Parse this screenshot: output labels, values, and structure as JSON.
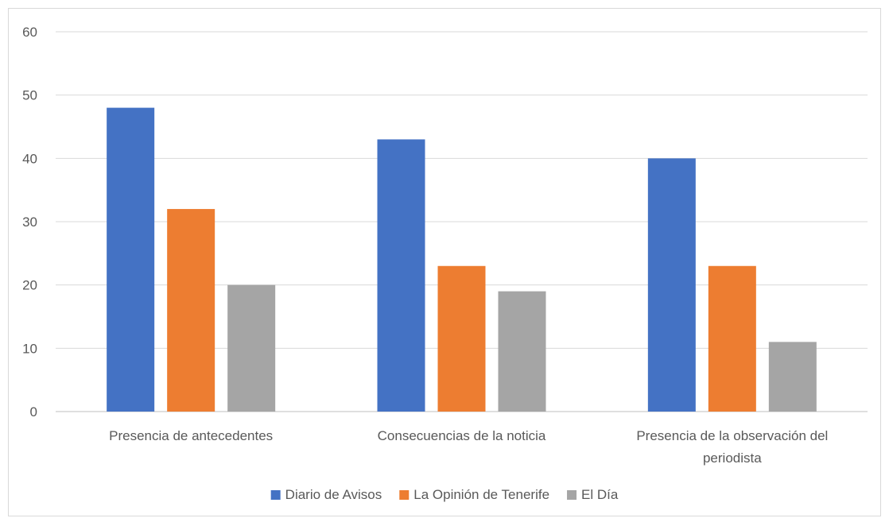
{
  "chart_data": {
    "type": "bar",
    "title": "",
    "xlabel": "",
    "ylabel": "",
    "categories": [
      [
        "Presencia de antecedentes"
      ],
      [
        "Consecuencias de la noticia"
      ],
      [
        "Presencia de la observación del",
        "periodista"
      ]
    ],
    "series": [
      {
        "name": "Diario de Avisos",
        "color": "#4472C4",
        "values": [
          48,
          43,
          40
        ]
      },
      {
        "name": "La Opinión de Tenerife",
        "color": "#ED7D31",
        "values": [
          32,
          23,
          23
        ]
      },
      {
        "name": "El Día",
        "color": "#A5A5A5",
        "values": [
          20,
          19,
          11
        ]
      }
    ],
    "ylim": [
      0,
      60
    ],
    "yticks": [
      "0",
      "10",
      "20",
      "30",
      "40",
      "50",
      "60"
    ],
    "grid": true,
    "legend_position": "bottom"
  }
}
